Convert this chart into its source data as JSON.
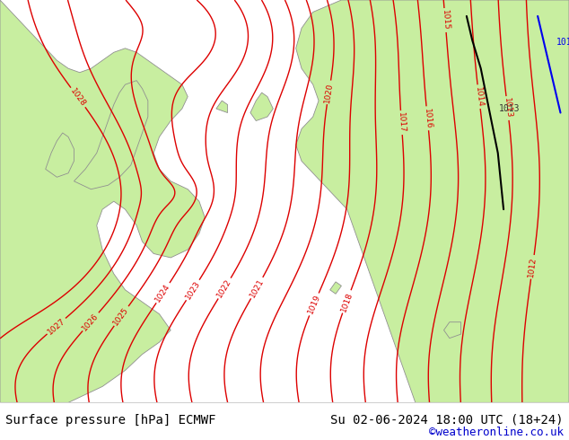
{
  "title_left": "Surface pressure [hPa] ECMWF",
  "title_right": "Su 02-06-2024 18:00 UTC (18+24)",
  "credit": "©weatheronline.co.uk",
  "bg_color": "#ffffff",
  "sea_color": "#d4d4d4",
  "land_color": "#c8eea0",
  "contour_color": "#dd0000",
  "coast_color": "#909090",
  "footer_text_color": "#000000",
  "credit_color": "#0000cc",
  "black_front_color": "#000000",
  "blue_front_color": "#0000ee",
  "font_size_footer": 10,
  "font_size_credit": 9,
  "contour_linewidth": 1.0,
  "figsize": [
    6.34,
    4.9
  ],
  "dpi": 100
}
